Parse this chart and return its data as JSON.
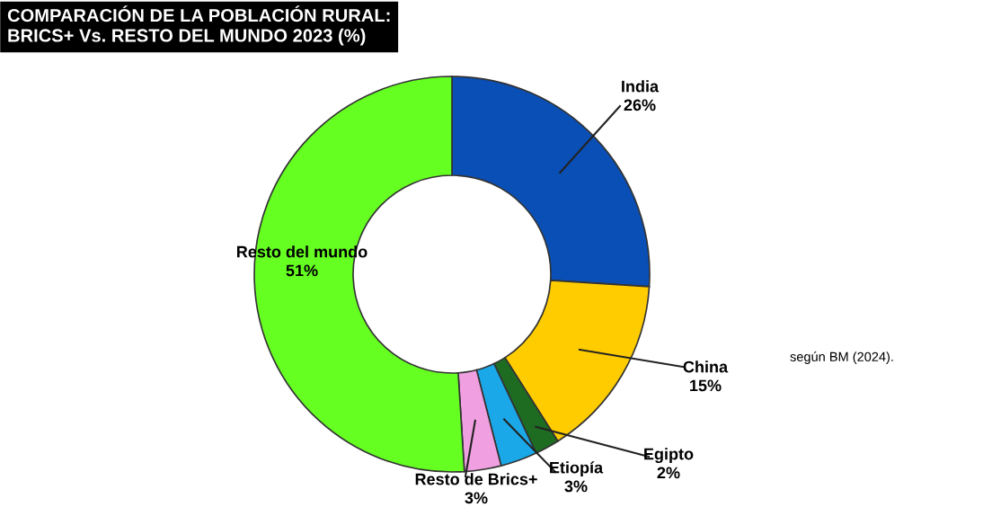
{
  "chart_data": {
    "type": "donut",
    "title": "COMPARACIÓN DE LA POBLACIÓN RURAL:\nBRICS+ Vs. RESTO DEL MUNDO 2023 (%)",
    "categories": [
      "India",
      "China",
      "Egipto",
      "Etiopía",
      "Resto de Brics+",
      "Resto del mundo"
    ],
    "values": [
      26,
      15,
      2,
      3,
      3,
      51
    ],
    "colors": [
      "#0a4fb5",
      "#ffcc00",
      "#1e6b22",
      "#1aa8e8",
      "#f0a0e0",
      "#66ff22"
    ],
    "value_labels": [
      "26%",
      "15%",
      "2%",
      "3%",
      "3%",
      "51%"
    ],
    "annotations": [
      "según BM (2024)."
    ]
  }
}
